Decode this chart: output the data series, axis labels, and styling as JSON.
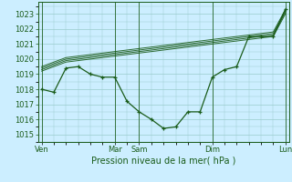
{
  "xlabel": "Pression niveau de la mer( hPa )",
  "bg_color": "#cceeff",
  "grid_color": "#99cccc",
  "line_color": "#1a5c1a",
  "ylim": [
    1014.5,
    1023.8
  ],
  "yticks": [
    1015,
    1016,
    1017,
    1018,
    1019,
    1020,
    1021,
    1022,
    1023
  ],
  "day_labels": [
    "Ven",
    "",
    "Mar",
    "Sam",
    "",
    "Dim",
    "",
    "Lun"
  ],
  "vline_positions": [
    0,
    6,
    8,
    14,
    20
  ],
  "vline_labels": [
    "Ven",
    "Mar",
    "Sam",
    "Dim",
    "Lun"
  ],
  "n_points": 21,
  "main_line_x": [
    0,
    1,
    2,
    3,
    4,
    5,
    6,
    7,
    8,
    9,
    10,
    11,
    12,
    13,
    14,
    15,
    16,
    17,
    18,
    19,
    20
  ],
  "main_line_y": [
    1018.0,
    1017.8,
    1019.4,
    1019.5,
    1019.0,
    1018.8,
    1018.8,
    1017.2,
    1016.5,
    1016.0,
    1015.4,
    1015.5,
    1016.5,
    1016.5,
    1018.8,
    1019.3,
    1019.5,
    1021.5,
    1021.5,
    1021.5,
    1023.3
  ],
  "forecast_lines_y": [
    [
      1019.5,
      1019.8,
      1020.1,
      1020.2,
      1020.3,
      1020.4,
      1020.5,
      1020.6,
      1020.7,
      1020.8,
      1020.9,
      1021.0,
      1021.1,
      1021.2,
      1021.3,
      1021.4,
      1021.5,
      1021.6,
      1021.7,
      1021.8,
      1023.3
    ],
    [
      1019.4,
      1019.7,
      1020.0,
      1020.1,
      1020.2,
      1020.3,
      1020.4,
      1020.5,
      1020.6,
      1020.7,
      1020.8,
      1020.9,
      1021.0,
      1021.1,
      1021.2,
      1021.3,
      1021.4,
      1021.5,
      1021.6,
      1021.7,
      1023.2
    ],
    [
      1019.3,
      1019.6,
      1019.9,
      1020.0,
      1020.1,
      1020.2,
      1020.3,
      1020.4,
      1020.5,
      1020.6,
      1020.7,
      1020.8,
      1020.9,
      1021.0,
      1021.1,
      1021.2,
      1021.3,
      1021.4,
      1021.5,
      1021.6,
      1023.1
    ],
    [
      1019.2,
      1019.5,
      1019.8,
      1019.9,
      1020.0,
      1020.1,
      1020.2,
      1020.3,
      1020.4,
      1020.5,
      1020.6,
      1020.7,
      1020.8,
      1020.9,
      1021.0,
      1021.1,
      1021.2,
      1021.3,
      1021.4,
      1021.5,
      1023.0
    ]
  ],
  "main_markers_x": [
    0,
    1,
    2,
    3,
    4,
    5,
    6,
    7,
    8,
    9,
    10,
    11,
    12,
    13,
    14,
    15,
    16,
    17,
    18,
    19,
    20
  ],
  "xlabel_fontsize": 7,
  "ytick_fontsize": 6,
  "xtick_fontsize": 6
}
